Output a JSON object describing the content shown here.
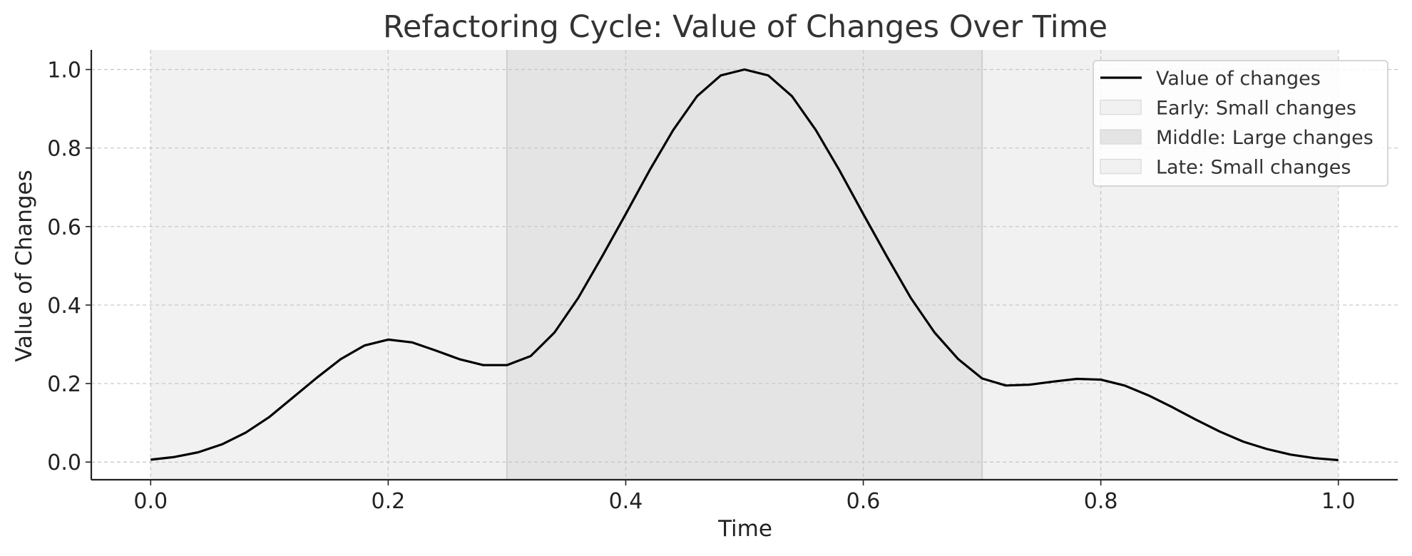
{
  "chart_data": {
    "type": "line",
    "title": "Refactoring Cycle: Value of Changes Over Time",
    "xlabel": "Time",
    "ylabel": "Value of Changes",
    "xlim": [
      -0.05,
      1.05
    ],
    "ylim": [
      -0.045,
      1.05
    ],
    "x_ticks": [
      "0.0",
      "0.2",
      "0.4",
      "0.6",
      "0.8",
      "1.0"
    ],
    "y_ticks": [
      "0.0",
      "0.2",
      "0.4",
      "0.6",
      "0.8",
      "1.0"
    ],
    "grid": true,
    "legend_position": "top-right",
    "series": [
      {
        "name": "Value of changes",
        "color": "#000000",
        "x": [
          0.0,
          0.02,
          0.04,
          0.06,
          0.08,
          0.1,
          0.12,
          0.14,
          0.16,
          0.18,
          0.2,
          0.22,
          0.24,
          0.26,
          0.28,
          0.3,
          0.32,
          0.34,
          0.36,
          0.38,
          0.4,
          0.42,
          0.44,
          0.46,
          0.48,
          0.5,
          0.52,
          0.54,
          0.56,
          0.58,
          0.6,
          0.62,
          0.64,
          0.66,
          0.68,
          0.7,
          0.72,
          0.74,
          0.76,
          0.78,
          0.8,
          0.82,
          0.84,
          0.86,
          0.88,
          0.9,
          0.92,
          0.94,
          0.96,
          0.98,
          1.0
        ],
        "y": [
          0.006,
          0.013,
          0.025,
          0.045,
          0.075,
          0.115,
          0.165,
          0.215,
          0.262,
          0.297,
          0.312,
          0.305,
          0.284,
          0.262,
          0.247,
          0.247,
          0.27,
          0.33,
          0.418,
          0.523,
          0.632,
          0.743,
          0.846,
          0.932,
          0.985,
          1.0,
          0.985,
          0.932,
          0.846,
          0.743,
          0.632,
          0.523,
          0.418,
          0.33,
          0.262,
          0.213,
          0.195,
          0.197,
          0.205,
          0.212,
          0.21,
          0.195,
          0.17,
          0.14,
          0.108,
          0.078,
          0.052,
          0.033,
          0.019,
          0.01,
          0.005
        ]
      }
    ],
    "regions": [
      {
        "name": "Early: Small changes",
        "from": 0.0,
        "to": 0.3,
        "color": "#f1f1f1"
      },
      {
        "name": "Middle: Large changes",
        "from": 0.3,
        "to": 0.7,
        "color": "#e4e4e4"
      },
      {
        "name": "Late: Small changes",
        "from": 0.7,
        "to": 1.0,
        "color": "#f1f1f1"
      }
    ]
  }
}
